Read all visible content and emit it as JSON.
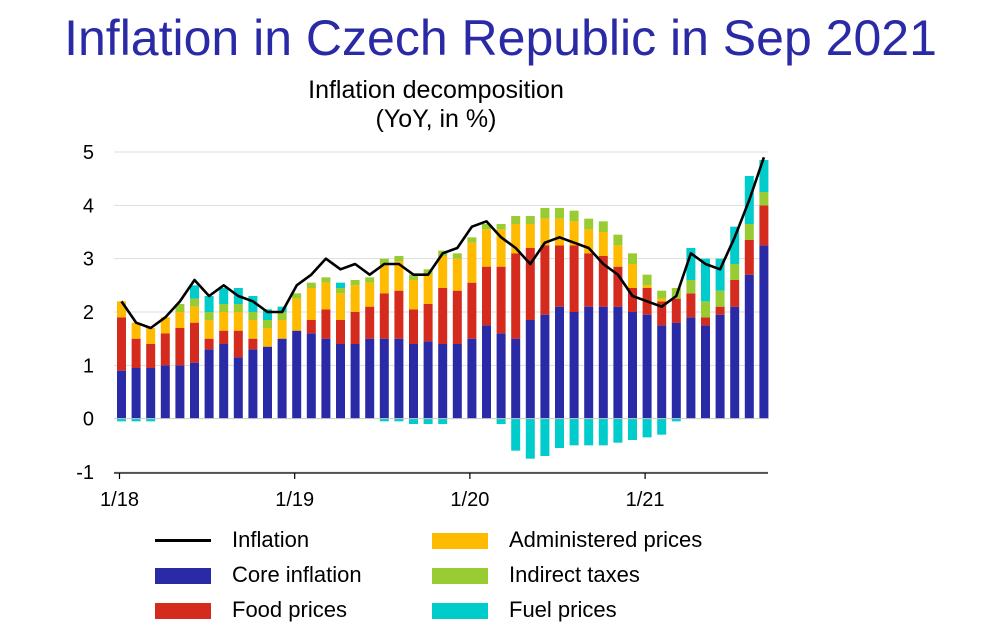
{
  "header": {
    "title": "Inflation in Czech Republic in Sep 2021"
  },
  "chart_data": {
    "type": "bar",
    "stacked": true,
    "title_lines": [
      "Inflation decomposition",
      "(YoY, in %)"
    ],
    "xlabel": "",
    "ylabel": "",
    "ylim": [
      -1,
      5
    ],
    "yticks": [
      -1,
      0,
      1,
      2,
      3,
      4,
      5
    ],
    "x_tick_labels": [
      {
        "index": 0,
        "label": "1/18"
      },
      {
        "index": 12,
        "label": "1/19"
      },
      {
        "index": 24,
        "label": "1/20"
      },
      {
        "index": 36,
        "label": "1/21"
      }
    ],
    "grid": "horizontal",
    "legend_position": "bottom",
    "colors": {
      "Inflation": "#000000",
      "Core inflation": "#2a2aa6",
      "Food prices": "#d52b1e",
      "Administered prices": "#ffbb00",
      "Indirect taxes": "#99cc33",
      "Fuel prices": "#00cccc"
    },
    "legend": [
      "Inflation",
      "Core inflation",
      "Food prices",
      "Administered prices",
      "Indirect taxes",
      "Fuel prices"
    ],
    "categories": [
      "1/18",
      "2/18",
      "3/18",
      "4/18",
      "5/18",
      "6/18",
      "7/18",
      "8/18",
      "9/18",
      "10/18",
      "11/18",
      "12/18",
      "1/19",
      "2/19",
      "3/19",
      "4/19",
      "5/19",
      "6/19",
      "7/19",
      "8/19",
      "9/19",
      "10/19",
      "11/19",
      "12/19",
      "1/20",
      "2/20",
      "3/20",
      "4/20",
      "5/20",
      "6/20",
      "7/20",
      "8/20",
      "9/20",
      "10/20",
      "11/20",
      "12/20",
      "1/21",
      "2/21",
      "3/21",
      "4/21",
      "5/21",
      "6/21",
      "7/21",
      "8/21",
      "9/21"
    ],
    "series": [
      {
        "name": "Core inflation",
        "values": [
          0.9,
          0.95,
          0.95,
          1.0,
          1.0,
          1.05,
          1.3,
          1.4,
          1.15,
          1.3,
          1.35,
          1.5,
          1.65,
          1.6,
          1.5,
          1.4,
          1.4,
          1.5,
          1.5,
          1.5,
          1.4,
          1.45,
          1.4,
          1.4,
          1.5,
          1.75,
          1.6,
          1.5,
          1.85,
          1.95,
          2.1,
          2.0,
          2.1,
          2.1,
          2.1,
          2.0,
          1.95,
          1.75,
          1.8,
          1.9,
          1.75,
          1.95,
          2.1,
          2.7,
          3.25
        ]
      },
      {
        "name": "Food prices",
        "values": [
          1.0,
          0.55,
          0.45,
          0.6,
          0.7,
          0.75,
          0.2,
          0.25,
          0.5,
          0.2,
          0.0,
          0.0,
          0.0,
          0.25,
          0.55,
          0.45,
          0.6,
          0.6,
          0.85,
          0.9,
          0.65,
          0.7,
          1.05,
          1.0,
          1.05,
          1.1,
          1.25,
          1.6,
          1.35,
          1.3,
          1.15,
          1.25,
          1.0,
          0.95,
          0.75,
          0.45,
          0.5,
          0.45,
          0.45,
          0.45,
          0.15,
          0.15,
          0.5,
          0.65,
          0.75
        ]
      },
      {
        "name": "Administered prices",
        "values": [
          0.3,
          0.3,
          0.3,
          0.3,
          0.3,
          0.3,
          0.35,
          0.35,
          0.35,
          0.35,
          0.35,
          0.35,
          0.6,
          0.6,
          0.5,
          0.5,
          0.5,
          0.45,
          0.55,
          0.55,
          0.55,
          0.55,
          0.6,
          0.6,
          0.75,
          0.7,
          0.7,
          0.55,
          0.45,
          0.5,
          0.5,
          0.45,
          0.45,
          0.45,
          0.4,
          0.45,
          0.05,
          0.05,
          0.0,
          0.0,
          0.0,
          0.0,
          0.0,
          0.0,
          0.0
        ]
      },
      {
        "name": "Indirect taxes",
        "values": [
          0.0,
          0.0,
          0.0,
          0.0,
          0.15,
          0.15,
          0.15,
          0.15,
          0.15,
          0.15,
          0.15,
          0.15,
          0.1,
          0.1,
          0.1,
          0.1,
          0.1,
          0.1,
          0.1,
          0.1,
          0.1,
          0.1,
          0.1,
          0.1,
          0.1,
          0.1,
          0.1,
          0.15,
          0.15,
          0.2,
          0.2,
          0.2,
          0.2,
          0.2,
          0.2,
          0.2,
          0.2,
          0.15,
          0.2,
          0.25,
          0.3,
          0.3,
          0.3,
          0.3,
          0.25
        ]
      },
      {
        "name": "Fuel prices",
        "values": [
          -0.05,
          -0.05,
          -0.05,
          0.0,
          0.0,
          0.25,
          0.3,
          0.3,
          0.3,
          0.3,
          0.2,
          0.1,
          0.0,
          0.0,
          0.0,
          0.1,
          0.0,
          0.0,
          -0.05,
          -0.05,
          -0.1,
          -0.1,
          -0.1,
          0.0,
          0.0,
          0.0,
          -0.1,
          -0.6,
          -0.75,
          -0.7,
          -0.55,
          -0.5,
          -0.5,
          -0.5,
          -0.45,
          -0.4,
          -0.35,
          -0.3,
          -0.05,
          0.6,
          0.8,
          0.6,
          0.7,
          0.9,
          0.6
        ]
      },
      {
        "name": "Inflation",
        "type": "line",
        "values": [
          2.2,
          1.8,
          1.7,
          1.9,
          2.2,
          2.6,
          2.3,
          2.5,
          2.3,
          2.2,
          2.0,
          2.0,
          2.5,
          2.7,
          3.0,
          2.8,
          2.9,
          2.7,
          2.9,
          2.9,
          2.7,
          2.7,
          3.1,
          3.2,
          3.6,
          3.7,
          3.4,
          3.2,
          2.9,
          3.3,
          3.4,
          3.3,
          3.2,
          2.9,
          2.7,
          2.3,
          2.2,
          2.1,
          2.3,
          3.1,
          2.9,
          2.8,
          3.4,
          4.1,
          4.9
        ]
      }
    ]
  }
}
